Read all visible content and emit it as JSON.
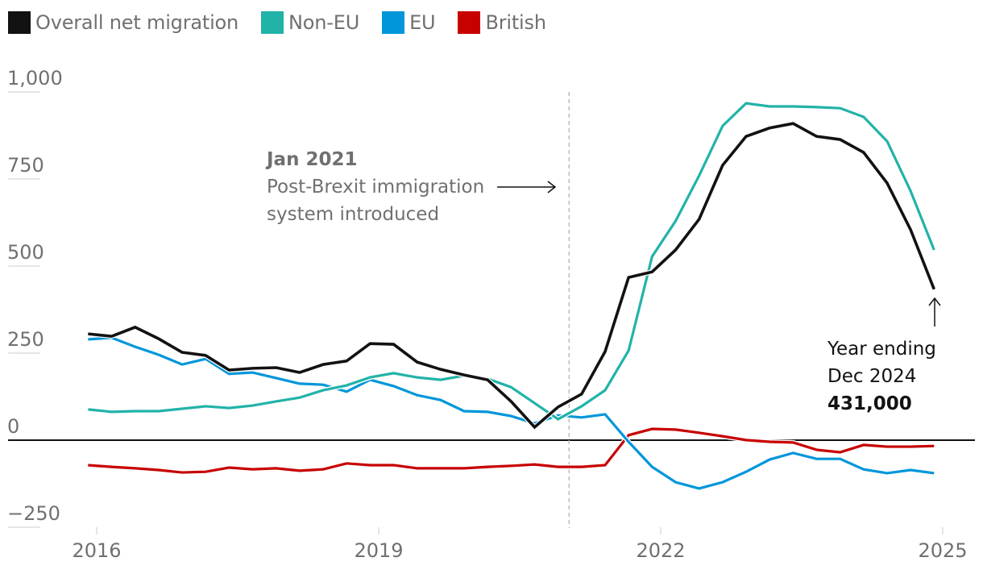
{
  "legend": [
    {
      "label": "Overall net migration",
      "color": "#121212"
    },
    {
      "label": "Non-EU",
      "color": "#22b3a8"
    },
    {
      "label": "EU",
      "color": "#0096d9"
    },
    {
      "label": "British",
      "color": "#c70000"
    }
  ],
  "annotation": {
    "title": "Jan 2021",
    "line1": "Post-Brexit immigration",
    "line2": "system introduced",
    "x": 2021.0
  },
  "end_label": {
    "line1": "Year ending",
    "line2": "Dec 2024",
    "value": "431,000"
  },
  "chart_data": {
    "type": "line",
    "title": "",
    "xlabel": "",
    "ylabel": "",
    "units": "thousands",
    "xlim": [
      2015.92,
      2025.2
    ],
    "ylim": [
      -250,
      1000
    ],
    "x_ticks": [
      2016,
      2019,
      2022,
      2025
    ],
    "x_tick_labels": [
      "2016",
      "2019",
      "2022",
      "2025"
    ],
    "y_ticks": [
      -250,
      0,
      250,
      500,
      750,
      1000
    ],
    "y_tick_labels": [
      "−250",
      "0",
      "250",
      "500",
      "750",
      "1,000"
    ],
    "grid": false,
    "legend_position": "top-left",
    "x_start": 2015.917,
    "x_step": 0.25,
    "x_description": "Quarterly, year ending Dec 2015 to year ending Dec 2024",
    "series": [
      {
        "name": "Overall net migration",
        "color": "#121212",
        "values": [
          303,
          296,
          322,
          289,
          250,
          241,
          199,
          204,
          206,
          192,
          215,
          225,
          275,
          273,
          222,
          201,
          185,
          171,
          109,
          35,
          93,
          130,
          252,
          465,
          481,
          544,
          632,
          787,
          870,
          894,
          907,
          870,
          861,
          824,
          736,
          602,
          431
        ]
      },
      {
        "name": "Non-EU",
        "color": "#22b3a8",
        "values": [
          86,
          79,
          81,
          81,
          88,
          95,
          90,
          97,
          109,
          120,
          141,
          155,
          178,
          190,
          178,
          171,
          183,
          174,
          150,
          104,
          58,
          95,
          141,
          255,
          525,
          627,
          757,
          900,
          965,
          956,
          956,
          954,
          951,
          926,
          856,
          713,
          544
        ]
      },
      {
        "name": "EU",
        "color": "#0096d9",
        "values": [
          287,
          292,
          266,
          243,
          215,
          231,
          188,
          192,
          176,
          160,
          157,
          137,
          171,
          153,
          127,
          113,
          81,
          79,
          67,
          46,
          69,
          63,
          72,
          -7,
          -79,
          -123,
          -141,
          -123,
          -93,
          -58,
          -39,
          -56,
          -56,
          -86,
          -97,
          -88,
          -97
        ]
      },
      {
        "name": "British",
        "color": "#c70000",
        "values": [
          -74,
          -79,
          -83,
          -88,
          -95,
          -93,
          -81,
          -86,
          -83,
          -90,
          -86,
          -69,
          -74,
          -74,
          -83,
          -83,
          -83,
          -79,
          -76,
          -72,
          -79,
          -79,
          -74,
          12,
          30,
          28,
          19,
          9,
          -2,
          -7,
          -9,
          -30,
          -37,
          -16,
          -21,
          -21,
          -19
        ]
      }
    ],
    "annotations": [
      {
        "x": 2021.0,
        "text": "Jan 2021 Post-Brexit immigration system introduced"
      },
      {
        "x": 2024.917,
        "y": 431,
        "text": "Year ending Dec 2024 431,000"
      }
    ]
  }
}
